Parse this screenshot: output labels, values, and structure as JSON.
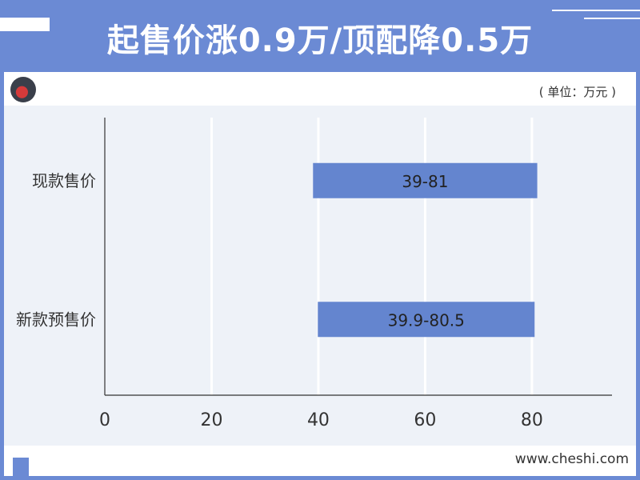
{
  "header": {
    "title": "起售价涨0.9万/顶配降0.5万"
  },
  "unit_label": "( 单位：万元 )",
  "logo": {
    "icon": "car-icon"
  },
  "source": "www.cheshi.com",
  "colors": {
    "accent": "#6b8ad4",
    "bar": "#6485cf",
    "plot_bg": "#eef2f8"
  },
  "chart_data": {
    "type": "bar",
    "orientation": "horizontal",
    "range_bars": true,
    "categories": [
      "现款售价",
      "新款预售价"
    ],
    "series": [
      {
        "ranges": [
          [
            39,
            81
          ],
          [
            39.9,
            80.5
          ]
        ],
        "labels": [
          "39-81",
          "39.9-80.5"
        ]
      }
    ],
    "xlim": [
      0,
      95
    ],
    "xticks": [
      0,
      20,
      40,
      60,
      80
    ],
    "xtick_labels": [
      "0",
      "20",
      "40",
      "60",
      "80"
    ],
    "grid": "vertical",
    "legend": "none"
  }
}
